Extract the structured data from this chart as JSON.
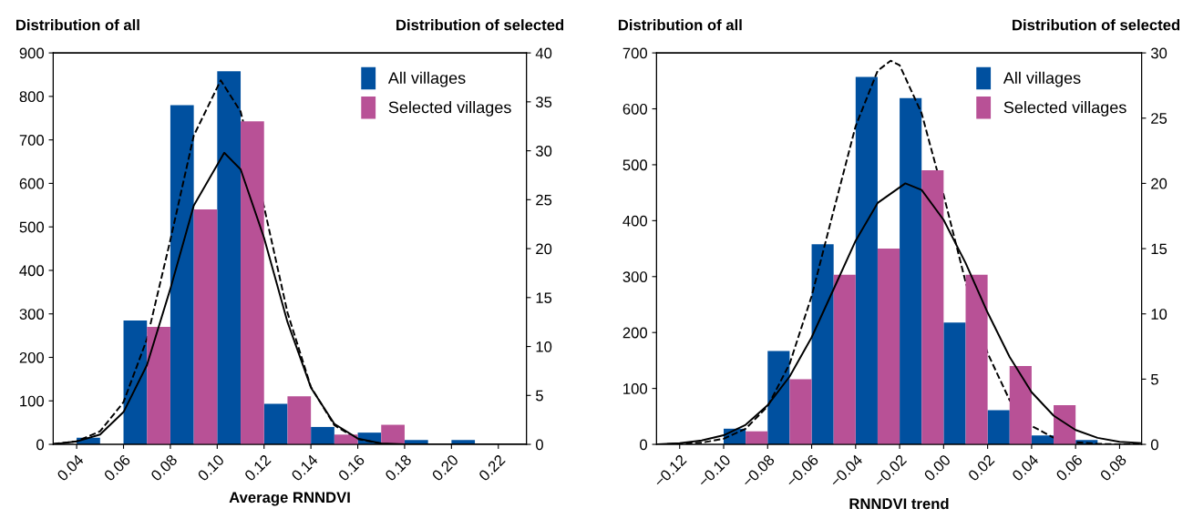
{
  "chart_data": [
    {
      "type": "histogram",
      "xlabel": "Average RNNDVI",
      "ylabel": "Distribution of all",
      "y2label": "Distribution of selected",
      "bins": [
        0.04,
        0.06,
        0.08,
        0.1,
        0.12,
        0.14,
        0.16,
        0.18,
        0.2,
        0.22
      ],
      "xlim": [
        0.03,
        0.232
      ],
      "xticks": [
        0.04,
        0.06,
        0.08,
        {
          "value": 0.1,
          "label": "0.10"
        },
        0.12,
        0.14,
        0.16,
        0.18,
        {
          "value": 0.2,
          "label": "0.20"
        },
        0.22
      ],
      "ylim": [
        0,
        900
      ],
      "yticks": [
        0,
        100,
        200,
        300,
        400,
        500,
        600,
        700,
        800,
        900
      ],
      "y2lim": [
        0,
        40
      ],
      "y2ticks": [
        0,
        5,
        10,
        15,
        20,
        25,
        30,
        35,
        40
      ],
      "legend": "top right",
      "grid": false,
      "series": [
        {
          "name": "All villages",
          "color": "#00509f",
          "values": [
            15,
            285,
            780,
            858,
            93,
            40,
            27,
            10,
            10
          ]
        },
        {
          "name": "Selected villages",
          "color": "#b85196",
          "axis": "y2",
          "values": [
            0,
            12,
            24,
            33,
            4.9,
            1,
            2,
            0,
            0
          ]
        },
        {
          "type": "line",
          "color": "#000000",
          "line_style": "dashed",
          "x": [
            0.03,
            0.04,
            0.05,
            0.06,
            0.07,
            0.08,
            0.09,
            0.1015,
            0.11,
            0.12,
            0.13,
            0.14,
            0.15,
            0.16,
            0.17,
            0.18,
            0.2,
            0.232
          ],
          "values": [
            1,
            7,
            30,
            97,
            242,
            470,
            710,
            837,
            765,
            546,
            303,
            132,
            44,
            12,
            2,
            0,
            0,
            0
          ]
        },
        {
          "type": "line",
          "color": "#000000",
          "line_style": "solid",
          "axis": "y2",
          "x": [
            0.03,
            0.04,
            0.05,
            0.06,
            0.07,
            0.08,
            0.09,
            0.103,
            0.11,
            0.12,
            0.13,
            0.14,
            0.15,
            0.16,
            0.17,
            0.18,
            0.2,
            0.232
          ],
          "values": [
            0,
            0.3,
            1.0,
            3.3,
            8.1,
            15.9,
            24.4,
            29.8,
            28.1,
            21.1,
            12.5,
            5.8,
            2.1,
            0.6,
            0.1,
            0,
            0,
            0
          ]
        }
      ]
    },
    {
      "type": "histogram",
      "xlabel": "RNNDVI trend",
      "ylabel": "Distribution of all",
      "y2label": "Distribution of selected",
      "bins": [
        -0.1,
        -0.08,
        -0.06,
        -0.04,
        -0.02,
        0.0,
        0.02,
        0.04,
        0.06,
        0.08
      ],
      "xlim": [
        -0.1305,
        0.09
      ],
      "xticks": [
        {
          "value": -0.12,
          "label": "−0.12"
        },
        {
          "value": -0.1,
          "label": "−0.10"
        },
        {
          "value": -0.08,
          "label": "−0.08"
        },
        {
          "value": -0.06,
          "label": "−0.06"
        },
        {
          "value": -0.04,
          "label": "−0.04"
        },
        {
          "value": -0.02,
          "label": "−0.02"
        },
        {
          "value": 0.0,
          "label": "0.00"
        },
        0.02,
        0.04,
        0.06,
        0.08
      ],
      "ylim": [
        0,
        700
      ],
      "yticks": [
        0,
        100,
        200,
        300,
        400,
        500,
        600,
        700
      ],
      "y2lim": [
        0,
        30
      ],
      "y2ticks": [
        0,
        5,
        10,
        15,
        20,
        25,
        30
      ],
      "legend": "top right",
      "grid": false,
      "series": [
        {
          "name": "All villages",
          "color": "#00509f",
          "values": [
            28,
            167,
            358,
            657,
            619,
            218,
            61,
            16,
            8
          ]
        },
        {
          "name": "Selected villages",
          "color": "#b85196",
          "axis": "y2",
          "values": [
            1,
            5,
            13,
            15,
            21,
            13,
            6,
            3,
            0
          ]
        },
        {
          "type": "line",
          "color": "#000000",
          "line_style": "dashed",
          "x": [
            -0.13,
            -0.12,
            -0.11,
            -0.1,
            -0.09,
            -0.08,
            -0.07,
            -0.06,
            -0.05,
            -0.04,
            -0.03,
            -0.0241,
            -0.02,
            -0.01,
            0.0,
            0.01,
            0.02,
            0.03,
            0.04,
            0.05,
            0.06,
            0.07,
            0.08,
            0.09
          ],
          "values": [
            0,
            1,
            3,
            10,
            28,
            68,
            144,
            265,
            418,
            569,
            668,
            686,
            678,
            592,
            446,
            290,
            163,
            79,
            33,
            12,
            4,
            1,
            0,
            0
          ]
        },
        {
          "type": "line",
          "color": "#000000",
          "line_style": "solid",
          "axis": "y2",
          "x": [
            -0.13,
            -0.12,
            -0.11,
            -0.1,
            -0.09,
            -0.08,
            -0.07,
            -0.06,
            -0.05,
            -0.04,
            -0.03,
            -0.0174,
            -0.01,
            0.0,
            0.01,
            0.02,
            0.03,
            0.04,
            0.05,
            0.06,
            0.07,
            0.08,
            0.09
          ],
          "values": [
            0,
            0.1,
            0.3,
            0.7,
            1.5,
            3.0,
            5.2,
            8.2,
            11.9,
            15.6,
            18.5,
            20.0,
            19.5,
            17.2,
            13.9,
            10.1,
            6.7,
            4.0,
            2.2,
            1.1,
            0.5,
            0.2,
            0.1
          ]
        }
      ]
    }
  ]
}
